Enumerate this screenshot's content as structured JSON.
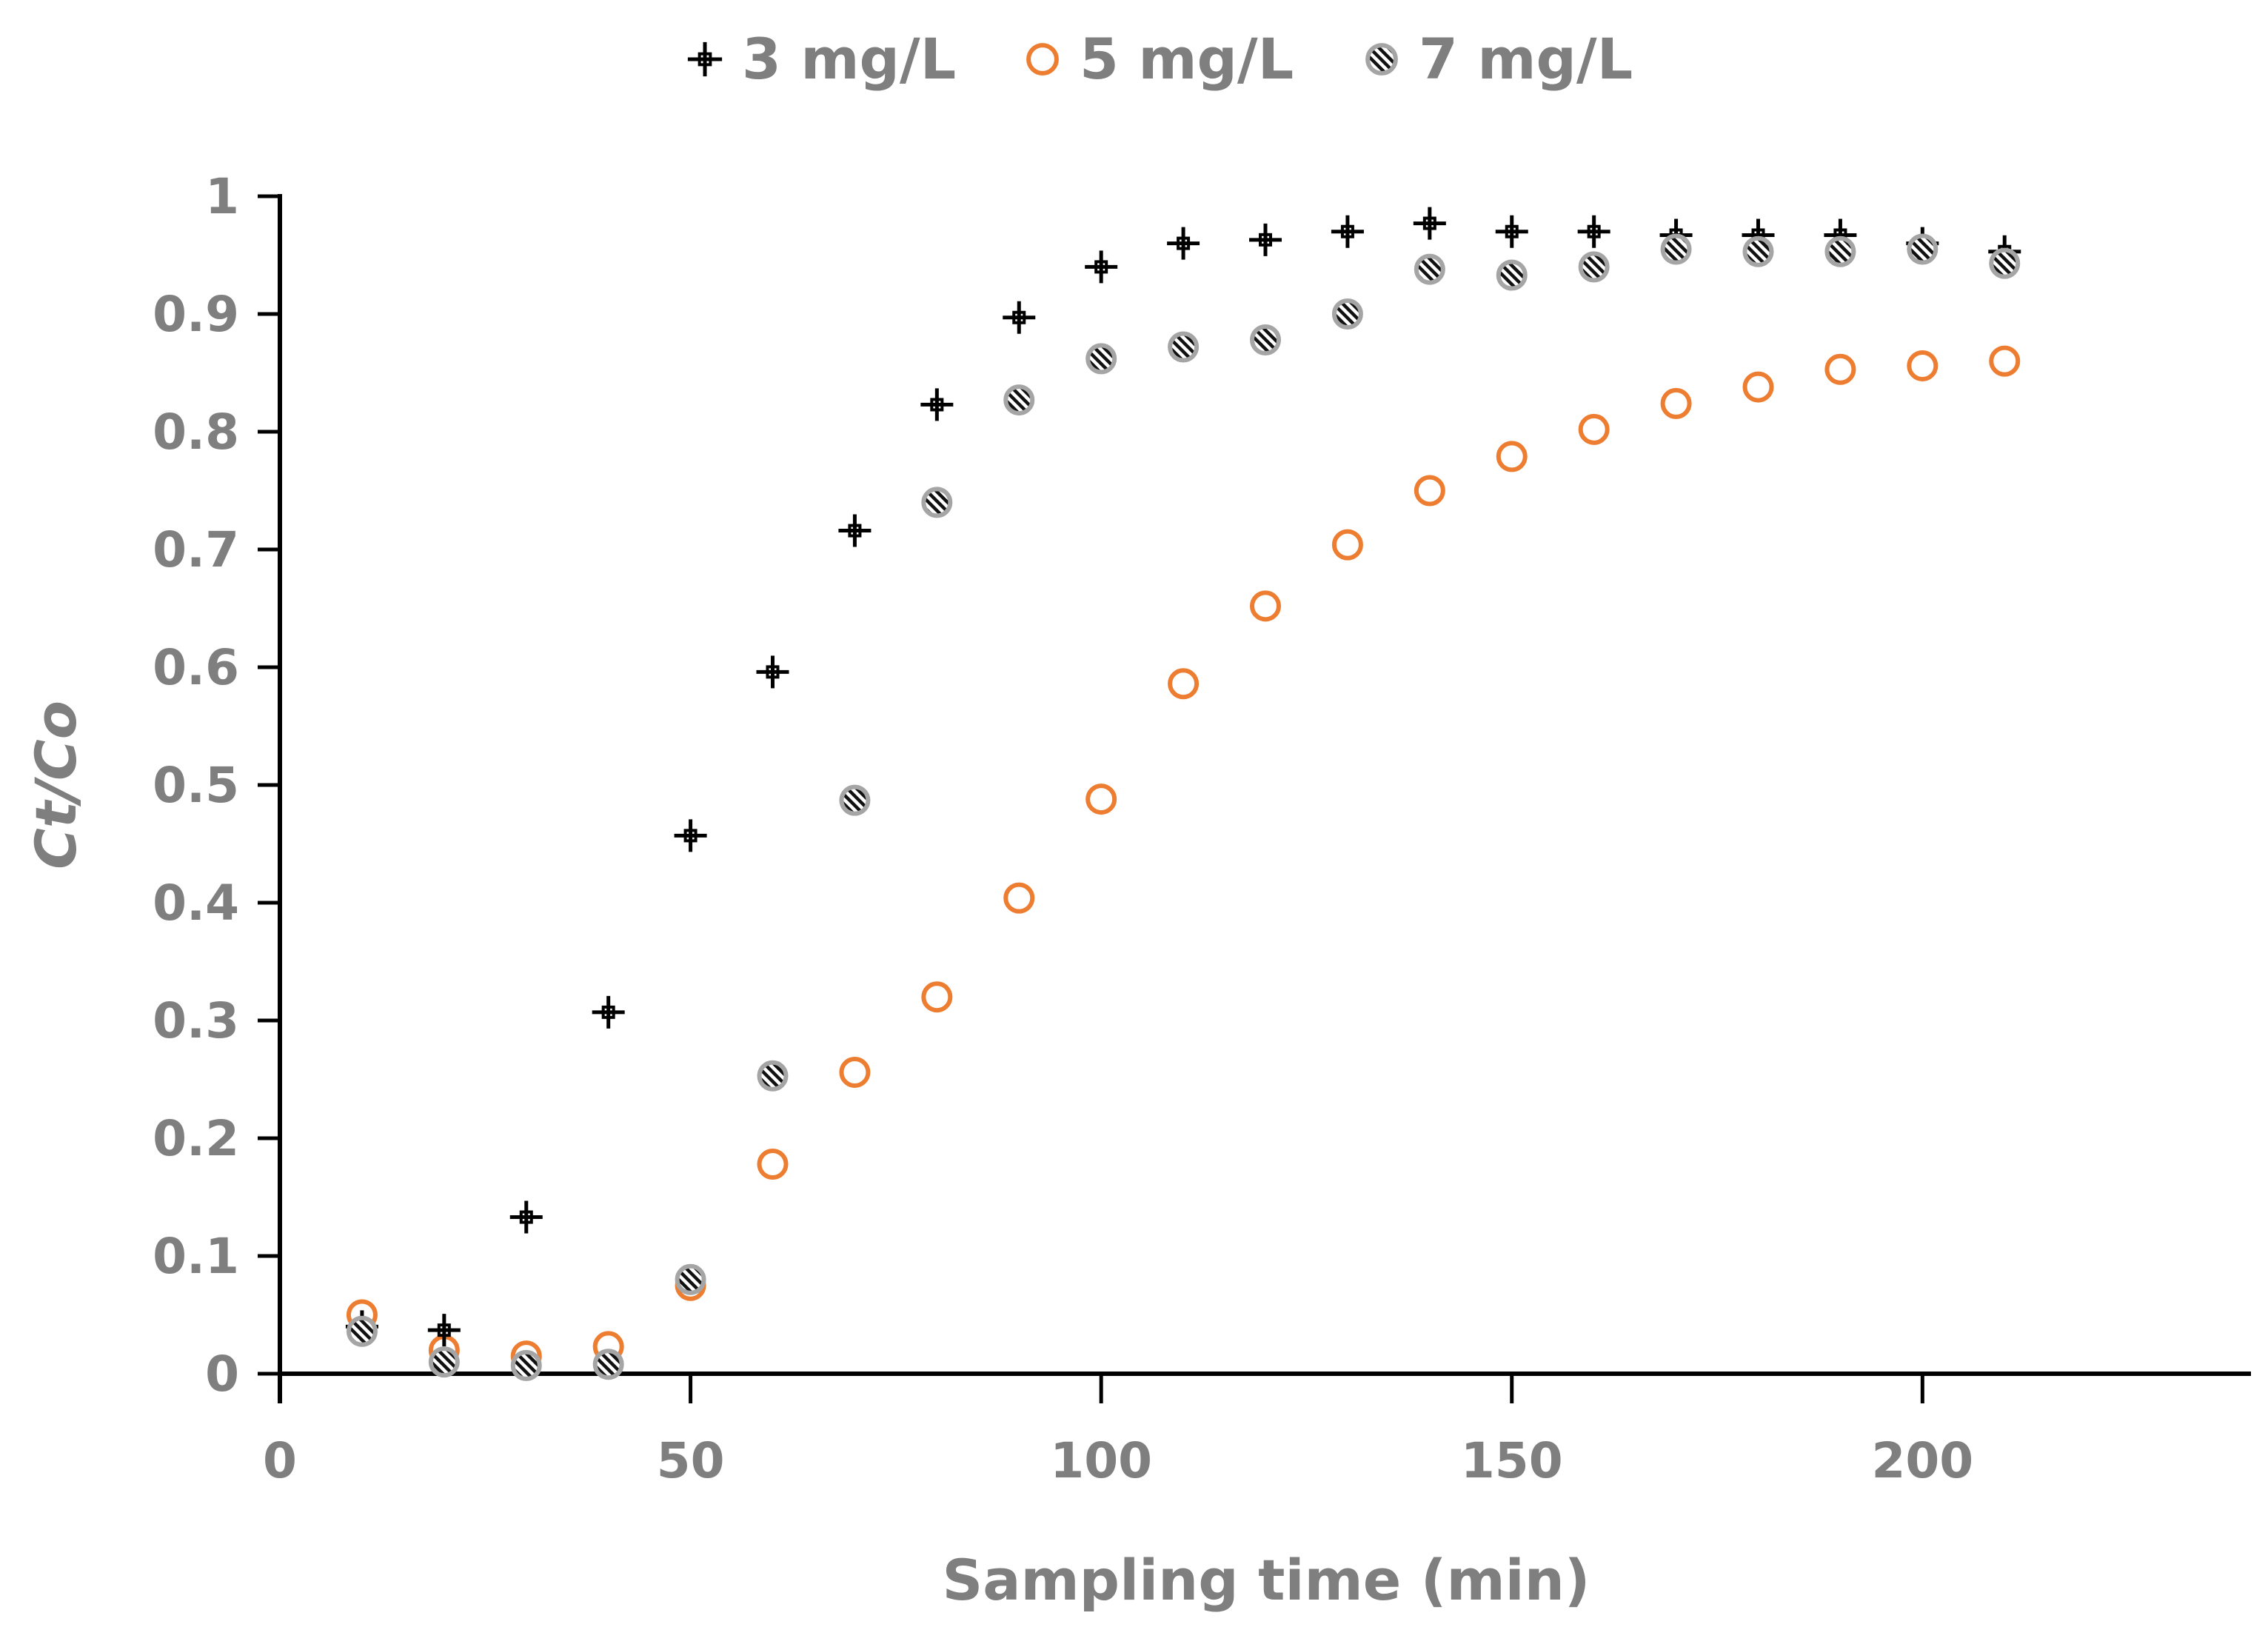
{
  "chart_data": {
    "type": "scatter",
    "title": "",
    "xlabel": "Sampling time (min)",
    "ylabel": "Ct/Co",
    "xlim": [
      0,
      240
    ],
    "ylim": [
      0,
      1
    ],
    "x_ticks": [
      0,
      50,
      100,
      150,
      200
    ],
    "x_tick_labels": [
      "0",
      "50",
      "100",
      "150",
      "200"
    ],
    "y_ticks": [
      0,
      0.1,
      0.2,
      0.3,
      0.4,
      0.5,
      0.6,
      0.7,
      0.8,
      0.9,
      1
    ],
    "y_tick_labels": [
      "0",
      "0.1",
      "0.2",
      "0.3",
      "0.4",
      "0.5",
      "0.6",
      "0.7",
      "0.8",
      "0.9",
      "1"
    ],
    "grid": false,
    "legend_position": "top",
    "series": [
      {
        "name": "3 mg/L",
        "marker": "plus-square",
        "color": "#000000",
        "x": [
          10,
          20,
          30,
          40,
          50,
          60,
          70,
          80,
          90,
          100,
          110,
          120,
          130,
          140,
          150,
          160,
          170,
          180,
          190,
          200,
          210
        ],
        "y": [
          0.04,
          0.037,
          0.133,
          0.307,
          0.457,
          0.596,
          0.716,
          0.823,
          0.897,
          0.94,
          0.96,
          0.963,
          0.97,
          0.977,
          0.97,
          0.97,
          0.967,
          0.967,
          0.967,
          0.96,
          0.953
        ]
      },
      {
        "name": "5 mg/L",
        "marker": "open-circle",
        "color": "#ed7d31",
        "x": [
          10,
          20,
          30,
          40,
          50,
          60,
          70,
          80,
          90,
          100,
          110,
          120,
          130,
          140,
          150,
          160,
          170,
          180,
          190,
          200,
          210
        ],
        "y": [
          0.05,
          0.02,
          0.015,
          0.023,
          0.075,
          0.178,
          0.256,
          0.32,
          0.404,
          0.488,
          0.586,
          0.652,
          0.704,
          0.75,
          0.779,
          0.802,
          0.824,
          0.838,
          0.853,
          0.856,
          0.86
        ]
      },
      {
        "name": "7 mg/L",
        "marker": "hatched-circle",
        "color": "#a5a5a5",
        "x": [
          10,
          20,
          30,
          40,
          50,
          60,
          70,
          80,
          90,
          100,
          110,
          120,
          130,
          140,
          150,
          160,
          170,
          180,
          190,
          200,
          210
        ],
        "y": [
          0.036,
          0.01,
          0.007,
          0.008,
          0.08,
          0.253,
          0.487,
          0.74,
          0.827,
          0.862,
          0.872,
          0.878,
          0.9,
          0.938,
          0.933,
          0.94,
          0.955,
          0.953,
          0.953,
          0.955,
          0.943
        ]
      }
    ]
  }
}
